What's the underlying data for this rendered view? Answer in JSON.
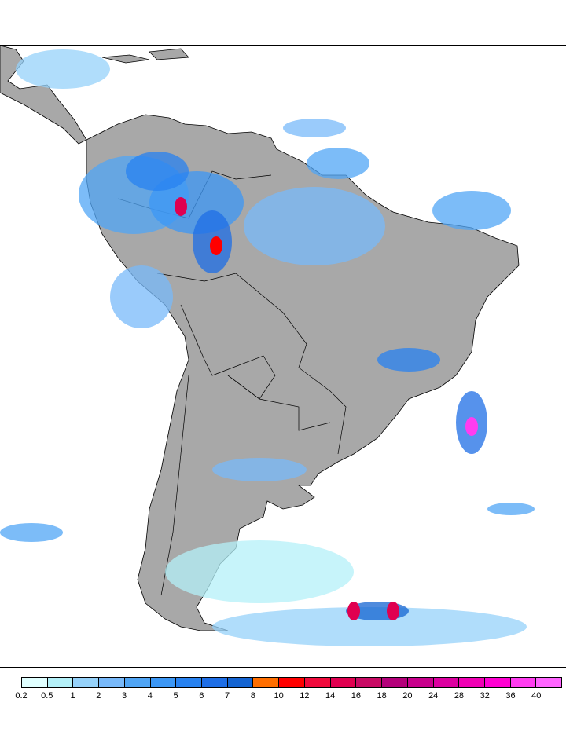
{
  "legend": {
    "labels": [
      "0.2",
      "0.5",
      "1",
      "2",
      "3",
      "4",
      "5",
      "6",
      "7",
      "8",
      "10",
      "12",
      "14",
      "16",
      "18",
      "20",
      "24",
      "28",
      "32",
      "36",
      "40"
    ],
    "colors": [
      "#e0ffff",
      "#b4f0f8",
      "#96d2fa",
      "#78b9fa",
      "#50a5f5",
      "#3c97f5",
      "#2882f0",
      "#1e6ee6",
      "#1464d2",
      "#ff6e00",
      "#ff0000",
      "#f00a3c",
      "#e00050",
      "#c80a64",
      "#b4007a",
      "#c8008c",
      "#dc00a0",
      "#f000b4",
      "#ff00d2",
      "#ff3cf0",
      "#ff64ff"
    ]
  },
  "map": {
    "land_color": "#a8a8a8",
    "ocean_color": "#ffffff",
    "border_color": "#000000"
  }
}
